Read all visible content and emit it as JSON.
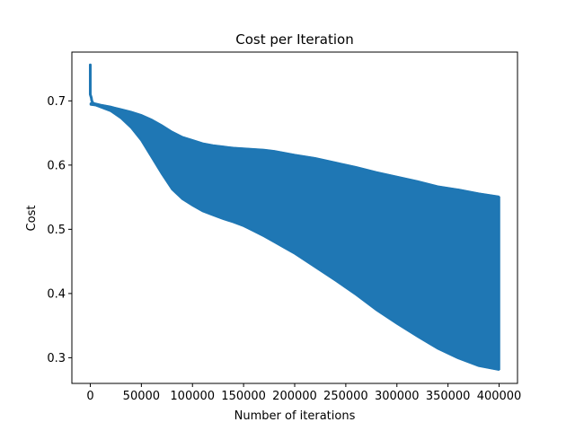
{
  "chart_data": {
    "type": "area",
    "title": "Cost per Iteration",
    "xlabel": "Number of iterations",
    "ylabel": "Cost",
    "xlim": [
      -18000,
      418000
    ],
    "ylim": [
      0.26,
      0.776
    ],
    "xticks": [
      0,
      50000,
      100000,
      150000,
      200000,
      250000,
      300000,
      350000,
      400000
    ],
    "xtick_labels": [
      "0",
      "50000",
      "100000",
      "150000",
      "200000",
      "250000",
      "300000",
      "350000",
      "400000"
    ],
    "yticks": [
      0.3,
      0.4,
      0.5,
      0.6,
      0.7
    ],
    "ytick_labels": [
      "0.3",
      "0.4",
      "0.5",
      "0.6",
      "0.7"
    ],
    "grid": false,
    "series": [
      {
        "color": "#1f77b4",
        "description": "oscillating cost band (upper and lower envelopes)",
        "upper": {
          "x": [
            0,
            2000,
            5000,
            10000,
            20000,
            30000,
            40000,
            50000,
            60000,
            70000,
            80000,
            90000,
            100000,
            110000,
            120000,
            130000,
            140000,
            150000,
            160000,
            170000,
            180000,
            190000,
            200000,
            220000,
            240000,
            260000,
            280000,
            300000,
            320000,
            340000,
            360000,
            380000,
            400000
          ],
          "y": [
            0.696,
            0.697,
            0.696,
            0.694,
            0.691,
            0.687,
            0.683,
            0.678,
            0.671,
            0.662,
            0.652,
            0.644,
            0.639,
            0.634,
            0.631,
            0.629,
            0.627,
            0.626,
            0.625,
            0.624,
            0.622,
            0.619,
            0.616,
            0.611,
            0.604,
            0.597,
            0.589,
            0.582,
            0.575,
            0.567,
            0.562,
            0.556,
            0.551
          ]
        },
        "lower": {
          "x": [
            0,
            5000,
            10000,
            20000,
            30000,
            40000,
            50000,
            60000,
            70000,
            80000,
            90000,
            100000,
            110000,
            120000,
            130000,
            140000,
            150000,
            160000,
            170000,
            180000,
            190000,
            200000,
            220000,
            240000,
            260000,
            280000,
            300000,
            320000,
            340000,
            360000,
            380000,
            400000
          ],
          "y": [
            0.694,
            0.693,
            0.69,
            0.684,
            0.673,
            0.658,
            0.638,
            0.612,
            0.586,
            0.562,
            0.547,
            0.537,
            0.528,
            0.522,
            0.516,
            0.511,
            0.505,
            0.497,
            0.489,
            0.48,
            0.471,
            0.462,
            0.441,
            0.42,
            0.398,
            0.374,
            0.353,
            0.333,
            0.314,
            0.299,
            0.287,
            0.281
          ]
        },
        "spike": {
          "x": [
            0,
            0,
            1000,
            1500,
            2500
          ],
          "y": [
            0.756,
            0.71,
            0.705,
            0.7,
            0.697
          ]
        }
      }
    ]
  }
}
